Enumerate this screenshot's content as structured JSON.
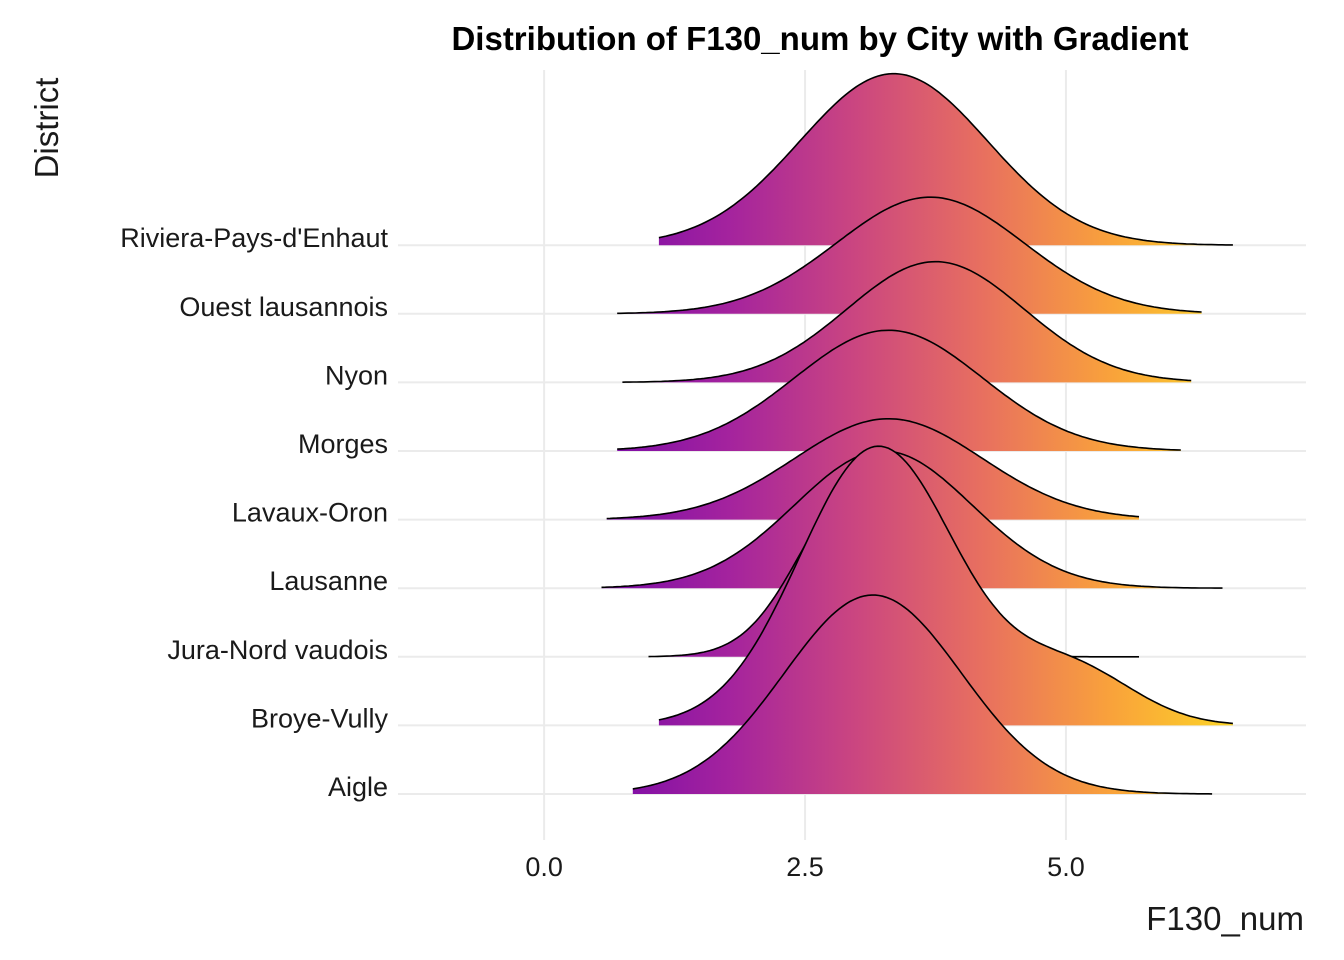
{
  "chart_data": {
    "type": "ridgeline",
    "title": "Distribution of F130_num by City with Gradient",
    "xlabel": "F130_num",
    "ylabel": "District",
    "x_ticks": [
      0.0,
      2.5,
      5.0
    ],
    "x_tick_labels": [
      "0.0",
      "2.5",
      "5.0"
    ],
    "xlim": [
      -1.4,
      7.3
    ],
    "grid": true,
    "gradient_colors": [
      "#7a0ba8",
      "#a4239e",
      "#cb4680",
      "#e8705f",
      "#f9a23b",
      "#fcd626"
    ],
    "categories": [
      "Aigle",
      "Broye-Vully",
      "Jura-Nord vaudois",
      "Lausanne",
      "Lavaux-Oron",
      "Morges",
      "Nyon",
      "Ouest lausannois",
      "Riviera-Pays-d'Enhaut"
    ],
    "series": [
      {
        "category": "Aigle",
        "x_range": [
          0.85,
          6.4
        ],
        "components": [
          [
            1,
            3.15,
            0.85
          ]
        ],
        "peak_height": 2.9
      },
      {
        "category": "Broye-Vully",
        "x_range": [
          1.1,
          6.6
        ],
        "components": [
          [
            1,
            3.2,
            0.75
          ],
          [
            0.2,
            5.05,
            0.6
          ]
        ],
        "peak_height": 4.07
      },
      {
        "category": "Jura-Nord vaudois",
        "x_range": [
          1.0,
          5.7
        ],
        "components": [
          [
            1,
            3.0,
            0.55
          ]
        ],
        "peak_height": 2.46
      },
      {
        "category": "Lausanne",
        "x_range": [
          0.55,
          6.5
        ],
        "components": [
          [
            1,
            3.25,
            0.85
          ]
        ],
        "peak_height": 2.0
      },
      {
        "category": "Lavaux-Oron",
        "x_range": [
          0.6,
          5.7
        ],
        "components": [
          [
            1,
            3.3,
            0.9
          ]
        ],
        "peak_height": 1.47
      },
      {
        "category": "Morges",
        "x_range": [
          0.7,
          6.1
        ],
        "components": [
          [
            1,
            3.3,
            0.9
          ]
        ],
        "peak_height": 1.76
      },
      {
        "category": "Nyon",
        "x_range": [
          0.75,
          6.2
        ],
        "components": [
          [
            1,
            3.75,
            0.85
          ]
        ],
        "peak_height": 1.76
      },
      {
        "category": "Ouest lausannois",
        "x_range": [
          0.7,
          6.3
        ],
        "components": [
          [
            1,
            3.7,
            0.9
          ]
        ],
        "peak_height": 1.7
      },
      {
        "category": "Riviera-Pays-d'Enhaut",
        "x_range": [
          1.1,
          6.6
        ],
        "components": [
          [
            1,
            3.35,
            0.9
          ]
        ],
        "peak_height": 2.5
      }
    ]
  }
}
